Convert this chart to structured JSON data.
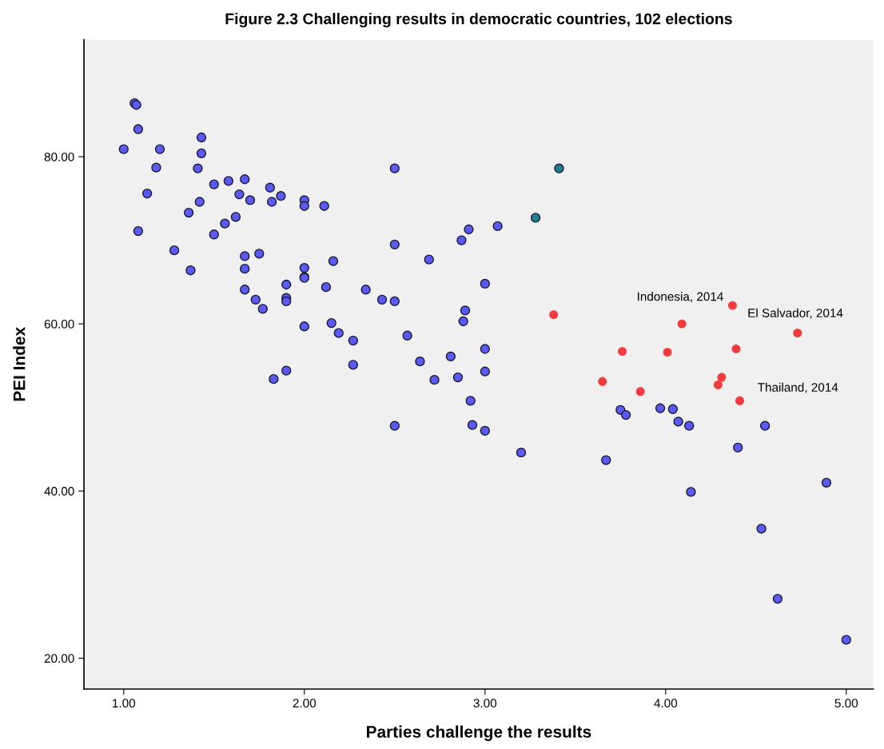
{
  "chart_data": {
    "type": "scatter",
    "title": "Figure 2.3 Challenging results in democratic countries, 102 elections",
    "xlabel": "Parties challenge the results",
    "ylabel": "PEI Index",
    "xlim": [
      0.78,
      5.15
    ],
    "ylim": [
      16.3,
      94.0
    ],
    "xticks": [
      {
        "value": 1,
        "label": "1.00"
      },
      {
        "value": 2,
        "label": "2.00"
      },
      {
        "value": 3,
        "label": "3.00"
      },
      {
        "value": 4,
        "label": "4.00"
      },
      {
        "value": 5,
        "label": "5.00"
      }
    ],
    "yticks": [
      {
        "value": 20,
        "label": "20.00"
      },
      {
        "value": 40,
        "label": "40.00"
      },
      {
        "value": 60,
        "label": "60.00"
      },
      {
        "value": 80,
        "label": "80.00"
      }
    ],
    "grid": false,
    "legend": false,
    "marker": "circle",
    "series": [
      {
        "color": "#5a5af5",
        "x": [
          1.0,
          1.06,
          1.07,
          1.08,
          1.08,
          1.13,
          1.18,
          1.2,
          1.28,
          1.36,
          1.37,
          1.41,
          1.42,
          1.43,
          1.43,
          1.5,
          1.5,
          1.56,
          1.58,
          1.62,
          1.64,
          1.67,
          1.67,
          1.67,
          1.67,
          1.7,
          1.73,
          1.75,
          1.77,
          1.81,
          1.82,
          1.83,
          1.87,
          1.9,
          1.9,
          1.9,
          1.9,
          2.0,
          2.0,
          2.0,
          2.0,
          2.0,
          2.0,
          2.11,
          2.12,
          2.15,
          2.16,
          2.19,
          2.27,
          2.27,
          2.34,
          2.43,
          2.5,
          2.5,
          2.5,
          2.5,
          2.57,
          2.64,
          2.69,
          2.72,
          2.81,
          2.85,
          2.87,
          2.88,
          2.89,
          2.91,
          2.92,
          2.93,
          3.0,
          3.0,
          3.0,
          3.0,
          3.07,
          3.2,
          3.67,
          3.75,
          3.78,
          3.97,
          4.04,
          4.07,
          4.13,
          4.14,
          4.4,
          4.53,
          4.55,
          4.62,
          4.89,
          5.0
        ],
        "values": [
          80.9,
          86.4,
          86.2,
          83.3,
          71.1,
          75.6,
          78.7,
          80.9,
          68.8,
          73.3,
          66.4,
          78.6,
          74.6,
          80.4,
          82.3,
          70.7,
          76.7,
          72.0,
          77.1,
          72.8,
          75.5,
          77.3,
          68.1,
          66.6,
          64.1,
          74.8,
          62.9,
          68.4,
          61.8,
          76.3,
          74.6,
          53.4,
          75.3,
          64.7,
          63.1,
          62.7,
          54.4,
          74.8,
          74.1,
          66.7,
          65.6,
          65.5,
          59.7,
          74.1,
          64.4,
          60.1,
          67.5,
          58.9,
          58.0,
          55.1,
          64.1,
          62.9,
          78.6,
          69.5,
          62.7,
          47.8,
          58.6,
          55.5,
          67.7,
          53.3,
          56.1,
          53.6,
          70.0,
          60.3,
          61.6,
          71.3,
          50.8,
          47.9,
          64.8,
          57.0,
          54.3,
          47.2,
          71.7,
          44.6,
          43.7,
          49.7,
          49.1,
          49.9,
          49.8,
          48.3,
          47.8,
          39.9,
          45.2,
          35.5,
          47.8,
          27.1,
          41.0,
          22.2
        ]
      },
      {
        "color": "#1f7f99",
        "x": [
          3.28,
          3.41
        ],
        "values": [
          72.7,
          78.6
        ]
      },
      {
        "color": "#f03c3c",
        "x": [
          3.38,
          3.65,
          3.76,
          3.86,
          4.01,
          4.09,
          4.29,
          4.31,
          4.37,
          4.39,
          4.41,
          4.73
        ],
        "values": [
          61.1,
          53.1,
          56.7,
          51.9,
          56.6,
          60.0,
          52.7,
          53.6,
          62.2,
          57.0,
          50.8,
          58.9
        ]
      }
    ],
    "annotations": [
      {
        "text": "Indonesia, 2014",
        "x": 4.37,
        "y": 62.2
      },
      {
        "text": "El Salvador, 2014",
        "x": 4.73,
        "y": 58.9
      },
      {
        "text": "Thailand, 2014",
        "x": 4.41,
        "y": 50.8
      }
    ]
  }
}
